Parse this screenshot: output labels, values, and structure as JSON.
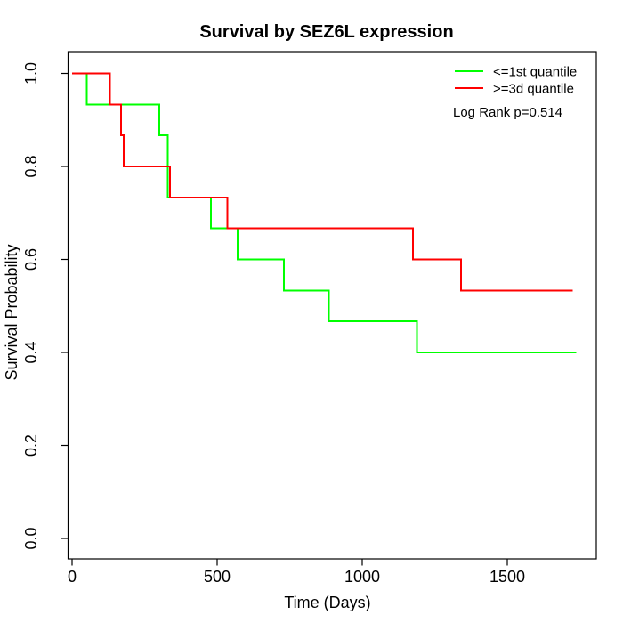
{
  "title": "Survival by SEZ6L expression",
  "x_axis": {
    "label": "Time (Days)",
    "tick_labels": [
      "0",
      "500",
      "1000",
      "1500"
    ]
  },
  "y_axis": {
    "label": "Survival Probability",
    "tick_labels": [
      "0.0",
      "0.2",
      "0.4",
      "0.6",
      "0.8",
      "1.0"
    ]
  },
  "legend": {
    "items": [
      {
        "label": "<=1st quantile",
        "color": "#00ff00"
      },
      {
        "label": ">=3d quantile",
        "color": "#ff0000"
      }
    ],
    "annotation": "Log Rank p=0.514"
  },
  "chart_data": {
    "type": "line",
    "subtype": "kaplan-meier-step",
    "title": "Survival by SEZ6L expression",
    "xlabel": "Time (Days)",
    "ylabel": "Survival Probability",
    "xlim": [
      0,
      1800
    ],
    "ylim": [
      0,
      1
    ],
    "x_ticks": [
      0,
      500,
      1000,
      1500
    ],
    "y_ticks": [
      0.0,
      0.2,
      0.4,
      0.6,
      0.8,
      1.0
    ],
    "grid": false,
    "legend_position": "topright",
    "annotation": "Log Rank p=0.514",
    "series": [
      {
        "name": "<=1st quantile",
        "color": "#00ff00",
        "points": [
          [
            0,
            1.0
          ],
          [
            50,
            0.9333
          ],
          [
            300,
            0.8667
          ],
          [
            330,
            0.7333
          ],
          [
            478,
            0.6667
          ],
          [
            570,
            0.6
          ],
          [
            730,
            0.5333
          ],
          [
            885,
            0.4667
          ],
          [
            1188,
            0.4
          ],
          [
            1738,
            0.4
          ]
        ]
      },
      {
        "name": ">=3d quantile",
        "color": "#ff0000",
        "points": [
          [
            0,
            1.0
          ],
          [
            130,
            0.9333
          ],
          [
            168,
            0.8667
          ],
          [
            178,
            0.8
          ],
          [
            337,
            0.7333
          ],
          [
            535,
            0.6667
          ],
          [
            1175,
            0.6
          ],
          [
            1340,
            0.5333
          ],
          [
            1725,
            0.5333
          ]
        ]
      }
    ]
  }
}
